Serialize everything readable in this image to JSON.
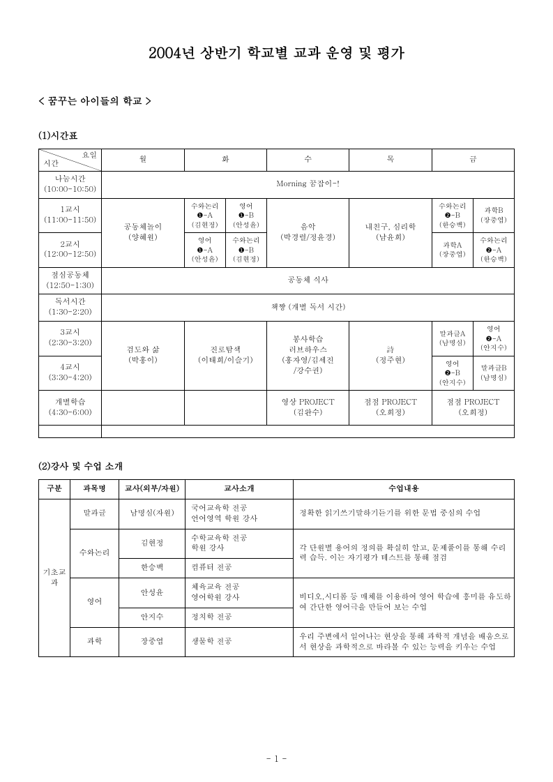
{
  "title": "2004년 상반기 학교별 교과 운영 및 평가",
  "subtitle": "< 꿈꾸는 아이들의 학교 >",
  "section1": "(1)시간표",
  "section2": "(2)강사 및 수업 소개",
  "pagenum": "- 1 -",
  "t1": {
    "diag_day": "요일",
    "diag_time": "시간",
    "days": [
      "월",
      "화",
      "수",
      "목",
      "금"
    ],
    "r_share_label": "나눔시간\n(10:00-10:50)",
    "r_share_text": "Morning 꿈잡이-!",
    "r1_label": "1교시\n(11:00-11:50)",
    "r2_label": "2교시\n(12:00-12:50)",
    "mon12": "공동체놀이\n(양혜원)",
    "tue1a": "수와논리\n❶-A\n(김현정)",
    "tue1b": "영어\n❶-B\n(안성윤)",
    "tue2a": "영어\n❶-A\n(안성윤)",
    "tue2b": "수와논리\n❶-B\n(김현정)",
    "wed12": "음악\n(박경렬/정윤경)",
    "thu12": "내친구, 심리학\n(남윤희)",
    "fri1a": "수와논리\n❷-B\n(한승백)",
    "fri1b": "과학B\n(장중엽)",
    "fri2a": "과학A\n(장중엽)",
    "fri2b": "수와논리\n❷-A\n(한승백)",
    "r_lunch_label": "점심공동체\n(12:50-1:30)",
    "r_lunch_text": "공동체 식사",
    "r_read_label": "독서시간\n(1:30-2:20)",
    "r_read_text": "책짱 (개별 독서 시간)",
    "r3_label": "3교시\n(2:30-3:20)",
    "r4_label": "4교시\n(3:30-4:20)",
    "mon34": "검도와 삶\n(박홍이)",
    "tue34": "진로탐색\n(이태희/이슬기)",
    "wed34": "봉사학습\n러브하우스\n(홍자영/김세진\n/강수권)",
    "thu34": "詩\n(정주현)",
    "fri3a": "말과글A\n(남명심)",
    "fri3b": "영어\n❷-A\n(안지수)",
    "fri4a": "영어\n❷-B\n(안지수)",
    "fri4b": "말과글B\n(남명심)",
    "r_ind_label": "개별학습\n(4:30-6:00)",
    "wed5": "영상 PROJECT\n(김완수)",
    "thu5": "점점 PROJECT\n(오희정)",
    "fri5": "점점 PROJECT\n(오희정)"
  },
  "t2": {
    "h": [
      "구분",
      "과목명",
      "교사(외부/자원)",
      "교사소개",
      "수업내용"
    ],
    "cat": "기초교\n과",
    "r1": {
      "subj": "말과글",
      "teacher": "남명심(자원)",
      "intro": "국어교육학 전공\n언어영역 학원 강사",
      "content": "정확한 읽기쓰기말하기듣기를 위한 문법 중심의 수업"
    },
    "r2": {
      "subj": "수와논리",
      "teacher": "김현정",
      "intro": "수학교육학 전공\n학원 강사",
      "content": "각 단원별 용어의 정의를 확실히 알고, 문제풀이를 통해 수리력 습득. 이는 자기평가 테스트를 통해 점검"
    },
    "r3": {
      "teacher": "한승백",
      "intro": "컴퓨터 전공"
    },
    "r4": {
      "subj": "영어",
      "teacher": "안성윤",
      "intro": "체육교육 전공\n영어학원 강사",
      "content": "비디오,시디롬 등 매체를 이용하여 영어 학습에 흥미를 유도하여 간단한 영어극을 만들어 보는 수업"
    },
    "r5": {
      "teacher": "안지수",
      "intro": "정치학 전공"
    },
    "r6": {
      "subj": "과학",
      "teacher": "장중엽",
      "intro": "생물학 전공",
      "content": "우리 주변에서 일어나는 현상을 통해 과학적 개념을 배움으로서 현상을 과학적으로 바라볼 수 있는 능력을 키우는 수업"
    }
  }
}
